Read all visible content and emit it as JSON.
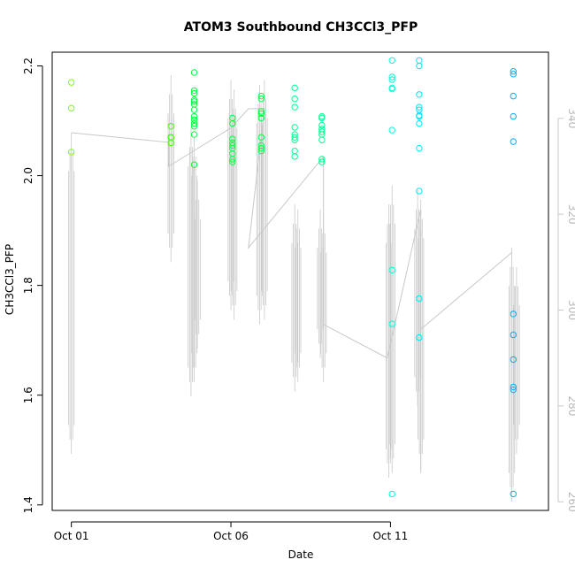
{
  "chart_data": {
    "type": "scatter",
    "title": "ATOM3 Southbound CH3CCl3_PFP",
    "xlabel": "Date",
    "ylabel": "CH3CCl3_PFP",
    "x_ticks": [
      "Oct 01",
      "Oct 06",
      "Oct 11"
    ],
    "x_tick_days": [
      1,
      6,
      11
    ],
    "xlim_days": [
      0.4,
      15.95
    ],
    "y_ticks": [
      "1.4",
      "1.6",
      "1.8",
      "2.0",
      "2.2"
    ],
    "ylim": [
      1.39,
      2.225
    ],
    "y2_ticks": [
      "260",
      "280",
      "300",
      "320",
      "340"
    ],
    "y2lim": [
      258.2,
      353.8
    ],
    "grid": false,
    "legend": "none",
    "colors": {
      "axis": "#000000",
      "secondary": "#c8c8c8",
      "secondary_labels": "#b8b8b8",
      "point_palette": [
        "#7fff00",
        "#40ff00",
        "#00ff3f",
        "#00ff90",
        "#00ffd8",
        "#00e5ff",
        "#00b0ff"
      ]
    },
    "series": [
      {
        "values": [
          [
            1.0,
            2.17
          ],
          [
            1.0,
            2.123
          ],
          [
            1.0,
            2.043
          ],
          [
            4.12,
            2.09
          ],
          [
            4.12,
            2.07
          ],
          [
            4.12,
            2.07
          ],
          [
            4.12,
            2.06
          ],
          [
            4.85,
            2.188
          ],
          [
            4.85,
            2.155
          ],
          [
            4.85,
            2.15
          ],
          [
            4.85,
            2.138
          ],
          [
            4.85,
            2.135
          ],
          [
            4.85,
            2.13
          ],
          [
            4.85,
            2.12
          ],
          [
            4.85,
            2.108
          ],
          [
            4.85,
            2.102
          ],
          [
            4.85,
            2.095
          ],
          [
            4.85,
            2.09
          ],
          [
            4.85,
            2.075
          ],
          [
            4.85,
            2.02
          ],
          [
            6.05,
            2.105
          ],
          [
            6.05,
            2.095
          ],
          [
            6.05,
            2.067
          ],
          [
            6.05,
            2.06
          ],
          [
            6.05,
            2.055
          ],
          [
            6.05,
            2.05
          ],
          [
            6.05,
            2.04
          ],
          [
            6.05,
            2.03
          ],
          [
            6.05,
            2.025
          ],
          [
            6.95,
            2.145
          ],
          [
            6.95,
            2.14
          ],
          [
            6.95,
            2.117
          ],
          [
            6.95,
            2.113
          ],
          [
            6.95,
            2.105
          ],
          [
            6.95,
            2.07
          ],
          [
            6.95,
            2.055
          ],
          [
            6.95,
            2.05
          ],
          [
            6.95,
            2.045
          ],
          [
            8.0,
            2.16
          ],
          [
            8.0,
            2.14
          ],
          [
            8.0,
            2.125
          ],
          [
            8.0,
            2.088
          ],
          [
            8.0,
            2.075
          ],
          [
            8.0,
            2.07
          ],
          [
            8.0,
            2.065
          ],
          [
            8.0,
            2.045
          ],
          [
            8.0,
            2.035
          ],
          [
            8.85,
            2.108
          ],
          [
            8.85,
            2.105
          ],
          [
            8.85,
            2.092
          ],
          [
            8.85,
            2.085
          ],
          [
            8.85,
            2.08
          ],
          [
            8.85,
            2.075
          ],
          [
            8.85,
            2.065
          ],
          [
            8.85,
            2.03
          ],
          [
            8.85,
            2.025
          ],
          [
            11.05,
            2.21
          ],
          [
            11.05,
            2.18
          ],
          [
            11.05,
            2.175
          ],
          [
            11.05,
            2.16
          ],
          [
            11.05,
            2.158
          ],
          [
            11.05,
            2.083
          ],
          [
            11.05,
            1.828
          ],
          [
            11.05,
            1.73
          ],
          [
            11.05,
            1.42
          ],
          [
            11.9,
            2.21
          ],
          [
            11.9,
            2.2
          ],
          [
            11.9,
            2.148
          ],
          [
            11.9,
            2.125
          ],
          [
            11.9,
            2.12
          ],
          [
            11.9,
            2.11
          ],
          [
            11.9,
            2.108
          ],
          [
            11.9,
            2.095
          ],
          [
            11.9,
            2.05
          ],
          [
            11.9,
            1.972
          ],
          [
            11.9,
            1.776
          ],
          [
            11.9,
            1.705
          ],
          [
            14.85,
            2.19
          ],
          [
            14.85,
            2.185
          ],
          [
            14.85,
            2.145
          ],
          [
            14.85,
            2.108
          ],
          [
            14.85,
            2.062
          ],
          [
            14.85,
            1.748
          ],
          [
            14.85,
            1.71
          ],
          [
            14.85,
            1.665
          ],
          [
            14.85,
            1.615
          ],
          [
            14.85,
            1.61
          ],
          [
            14.85,
            1.42
          ]
        ]
      },
      {
        "name_axis": "right",
        "values": [
          [
            1.0,
            337
          ],
          [
            4.05,
            335
          ],
          [
            4.05,
            330
          ],
          [
            6.0,
            338
          ],
          [
            6.55,
            342
          ],
          [
            7.05,
            342
          ],
          [
            6.55,
            313
          ],
          [
            8.9,
            332
          ],
          [
            8.9,
            297
          ],
          [
            10.9,
            290
          ],
          [
            11.95,
            321
          ],
          [
            11.95,
            266
          ],
          [
            11.95,
            296
          ],
          [
            14.8,
            312
          ]
        ]
      }
    ]
  }
}
